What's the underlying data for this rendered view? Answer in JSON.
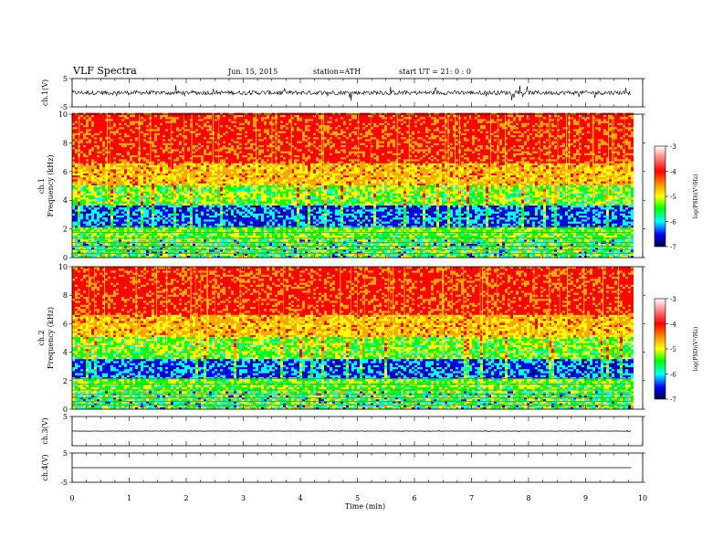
{
  "header": {
    "title": "VLF  Spectra",
    "date": "Jun. 15, 2015",
    "station": "station=ATH",
    "start": "start  UT =   21: 0  : 0"
  },
  "chart_data": [
    {
      "type": "line",
      "panel": "ch1-waveform",
      "ylabel": "ch.1(V)",
      "ylim": [
        -5,
        5
      ],
      "yticks": [
        "5",
        "-5"
      ],
      "xlim": [
        0,
        10
      ],
      "x_extent": [
        0,
        9.8
      ],
      "series": [
        {
          "mean": 0,
          "typical_amplitude": 1.5
        }
      ]
    },
    {
      "type": "heatmap",
      "panel": "ch1-spectrogram",
      "ylabel": "ch.1",
      "ylabel2": "Frequency  (kHz)",
      "ylim": [
        0,
        10
      ],
      "yticks": [
        "0",
        "2",
        "4",
        "6",
        "8",
        "10"
      ],
      "xlim": [
        0,
        10
      ],
      "x_extent": [
        0,
        9.8
      ],
      "colorbar": {
        "label": "log(PSD)(V²/Hz)",
        "ticks": [
          "-3",
          "-4",
          "-5",
          "-6",
          "-7"
        ],
        "range": [
          -7,
          -3
        ]
      }
    },
    {
      "type": "heatmap",
      "panel": "ch2-spectrogram",
      "ylabel": "ch.2",
      "ylabel2": "Frequency  (kHz)",
      "ylim": [
        0,
        10
      ],
      "yticks": [
        "0",
        "2",
        "4",
        "6",
        "8",
        "10"
      ],
      "xlim": [
        0,
        10
      ],
      "x_extent": [
        0,
        9.8
      ],
      "colorbar": {
        "label": "log(PSD)(V²/Hz)",
        "ticks": [
          "-3",
          "-4",
          "-5",
          "-6",
          "-7"
        ],
        "range": [
          -7,
          -3
        ]
      }
    },
    {
      "type": "line",
      "panel": "ch3-waveform",
      "ylabel": "ch.3(V)",
      "ylim": [
        -5,
        5
      ],
      "yticks": [
        "5"
      ],
      "xlim": [
        0,
        10
      ],
      "x_extent": [
        0,
        9.8
      ],
      "series": [
        {
          "mean": 0,
          "typical_amplitude": 0.1
        }
      ]
    },
    {
      "type": "line",
      "panel": "ch4-waveform",
      "ylabel": "ch.4(V)",
      "ylim": [
        -5,
        5
      ],
      "yticks": [
        "5",
        "-5"
      ],
      "xlim": [
        0,
        10
      ],
      "x_extent": [
        0,
        9.8
      ],
      "series": [
        {
          "mean": 0,
          "typical_amplitude": 0
        }
      ]
    }
  ],
  "xaxis": {
    "label": "Time  (min)",
    "ticks": [
      "0",
      "1",
      "2",
      "3",
      "4",
      "5",
      "6",
      "7",
      "8",
      "9",
      "10"
    ]
  },
  "colors": {
    "high": "#ff0000",
    "upper": "#ffa500",
    "mid_high": "#ffff00",
    "mid": "#00ff00",
    "mid_low": "#00ffff",
    "low": "#0000ff",
    "floor": "#000080"
  }
}
